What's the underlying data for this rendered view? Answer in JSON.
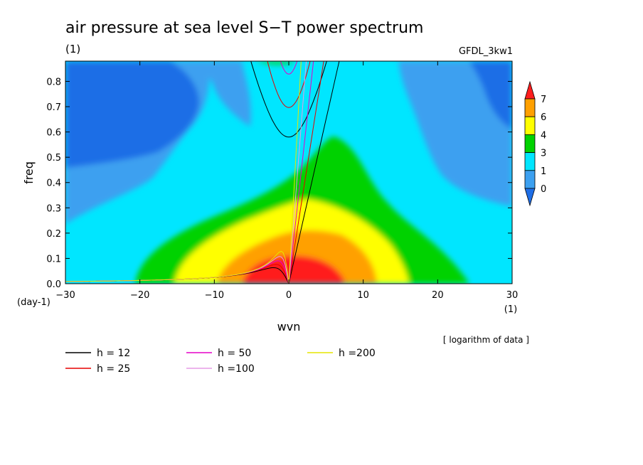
{
  "chart_data": {
    "type": "heatmap",
    "title": "air pressure at sea level S−T power spectrum",
    "subtitle": "(1)",
    "model": "GFDL_3kw1",
    "xlabel": "wvn",
    "ylabel": "freq",
    "x_unit": "(1)",
    "y_unit": "(day-1)",
    "note": "[ logarithm of data ]",
    "xlim": [
      -30,
      30
    ],
    "ylim": [
      0,
      0.88
    ],
    "xticks": [
      -30,
      -20,
      -10,
      0,
      10,
      20,
      30
    ],
    "yticks": [
      0.0,
      0.1,
      0.2,
      0.3,
      0.4,
      0.5,
      0.6,
      0.7,
      0.8
    ],
    "ytick_labels": [
      "0.0",
      "0.1",
      "0.2",
      "0.3",
      "0.4",
      "0.5",
      "0.6",
      "0.7",
      "0.8"
    ],
    "grid": false,
    "colorbar": {
      "labels": [
        "0",
        "1",
        "3",
        "4",
        "6",
        "7"
      ],
      "colors": [
        "#1e6ee6",
        "#3ca0f0",
        "#00e6ff",
        "#00d200",
        "#ffff00",
        "#ffa000",
        "#ff1e1e"
      ]
    },
    "dispersion_curves": [
      {
        "name": "h = 12",
        "color": "#000000"
      },
      {
        "name": "h = 25",
        "color": "#e60000"
      },
      {
        "name": "h = 50",
        "color": "#e600c8"
      },
      {
        "name": "h =100",
        "color": "#e69be6"
      },
      {
        "name": "h =200",
        "color": "#e6e600"
      }
    ]
  }
}
